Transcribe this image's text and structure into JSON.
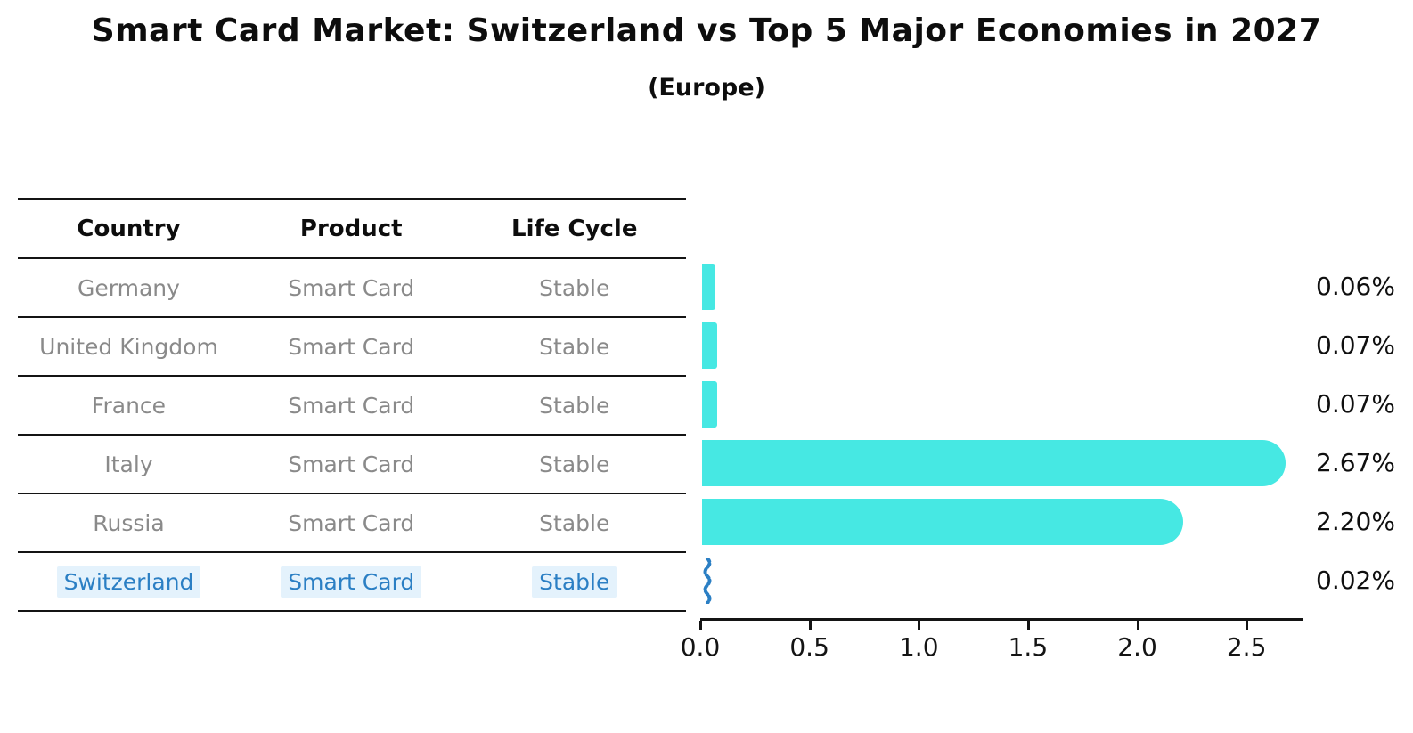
{
  "header": {
    "title": "Smart Card Market: Switzerland vs Top 5 Major Economies in 2027",
    "subtitle": "(Europe)"
  },
  "table": {
    "headers": [
      "Country",
      "Product",
      "Life Cycle"
    ],
    "rows": [
      {
        "country": "Germany",
        "product": "Smart Card",
        "life_cycle": "Stable",
        "highlighted": false
      },
      {
        "country": "United Kingdom",
        "product": "Smart Card",
        "life_cycle": "Stable",
        "highlighted": false
      },
      {
        "country": "France",
        "product": "Smart Card",
        "life_cycle": "Stable",
        "highlighted": false
      },
      {
        "country": "Italy",
        "product": "Smart Card",
        "life_cycle": "Stable",
        "highlighted": false
      },
      {
        "country": "Russia",
        "product": "Smart Card",
        "life_cycle": "Stable",
        "highlighted": false
      },
      {
        "country": "Switzerland",
        "product": "Smart Card",
        "life_cycle": "Stable",
        "highlighted": true
      }
    ]
  },
  "chart_data": {
    "type": "bar",
    "orientation": "horizontal",
    "title": "Smart Card Market: Switzerland vs Top 5 Major Economies in 2027",
    "subtitle": "(Europe)",
    "categories": [
      "Germany",
      "United Kingdom",
      "France",
      "Italy",
      "Russia",
      "Switzerland"
    ],
    "values": [
      0.06,
      0.07,
      0.07,
      2.67,
      2.2,
      0.02
    ],
    "value_labels": [
      "0.06%",
      "0.07%",
      "0.07%",
      "2.67%",
      "2.20%",
      "0.02%"
    ],
    "unit": "%",
    "xtick_labels": [
      "0.0",
      "0.5",
      "1.0",
      "1.5",
      "2.0",
      "2.5"
    ],
    "xtick_values": [
      0,
      0.5,
      1,
      1.5,
      2,
      2.5
    ],
    "xlim": [
      0,
      2.74
    ],
    "grid": false,
    "legend": false,
    "bar_color": "#46e8e3",
    "highlight_color": "#2b7fc4",
    "highlight_index": 5
  },
  "colors": {
    "background": "#ffffff",
    "table_line": "#141414",
    "muted_text": "#8a8a8a",
    "header_text": "#0d0d0d",
    "value_text": "#0f0f0f",
    "highlight_text": "#2b7fc4",
    "highlight_bg": "#e4f2fc",
    "bar": "#46e8e3"
  }
}
